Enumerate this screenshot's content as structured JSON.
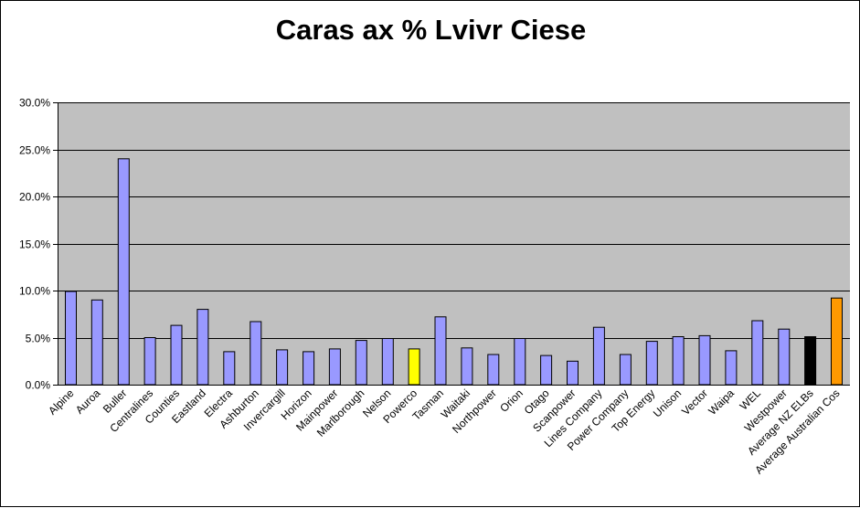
{
  "chart_data": {
    "type": "bar",
    "title": "Caras ax % Lvivr Ciese",
    "xlabel": "",
    "ylabel": "",
    "ylim": [
      0,
      0.3
    ],
    "yticks": [
      0,
      0.05,
      0.1,
      0.15,
      0.2,
      0.25,
      0.3
    ],
    "ytick_labels": [
      "0.0%",
      "5.0%",
      "10.0%",
      "15.0%",
      "20.0%",
      "25.0%",
      "30.0%"
    ],
    "grid": true,
    "legend": "none",
    "categories": [
      "Alpine",
      "Auroa",
      "Buller",
      "Centralines",
      "Counties",
      "Eastland",
      "Electra",
      "Ashburton",
      "Invercargill",
      "Horizon",
      "Mainpower",
      "Marlborough",
      "Nelson",
      "Powerco",
      "Tasman",
      "Waitaki",
      "Northpower",
      "Orion",
      "Otago",
      "Scanpower",
      "Lines Company",
      "Power Company",
      "Top Energy",
      "Unison",
      "Vector",
      "Waipa",
      "WEL",
      "Westpower",
      "Average NZ ELBs",
      "Average Australian Cos"
    ],
    "values": [
      0.099,
      0.09,
      0.24,
      0.05,
      0.063,
      0.08,
      0.035,
      0.067,
      0.037,
      0.035,
      0.038,
      0.047,
      0.049,
      0.038,
      0.072,
      0.039,
      0.032,
      0.049,
      0.031,
      0.025,
      0.061,
      0.032,
      0.046,
      0.051,
      0.052,
      0.036,
      0.068,
      0.059,
      0.051,
      0.092
    ],
    "colors": {
      "default": "#9999ff",
      "highlights": {
        "Powerco": "#ffff00",
        "Average NZ ELBs": "#000000",
        "Average Australian Cos": "#ff9900"
      },
      "plot_background": "#c0c0c0",
      "gridline": "#000000"
    }
  }
}
